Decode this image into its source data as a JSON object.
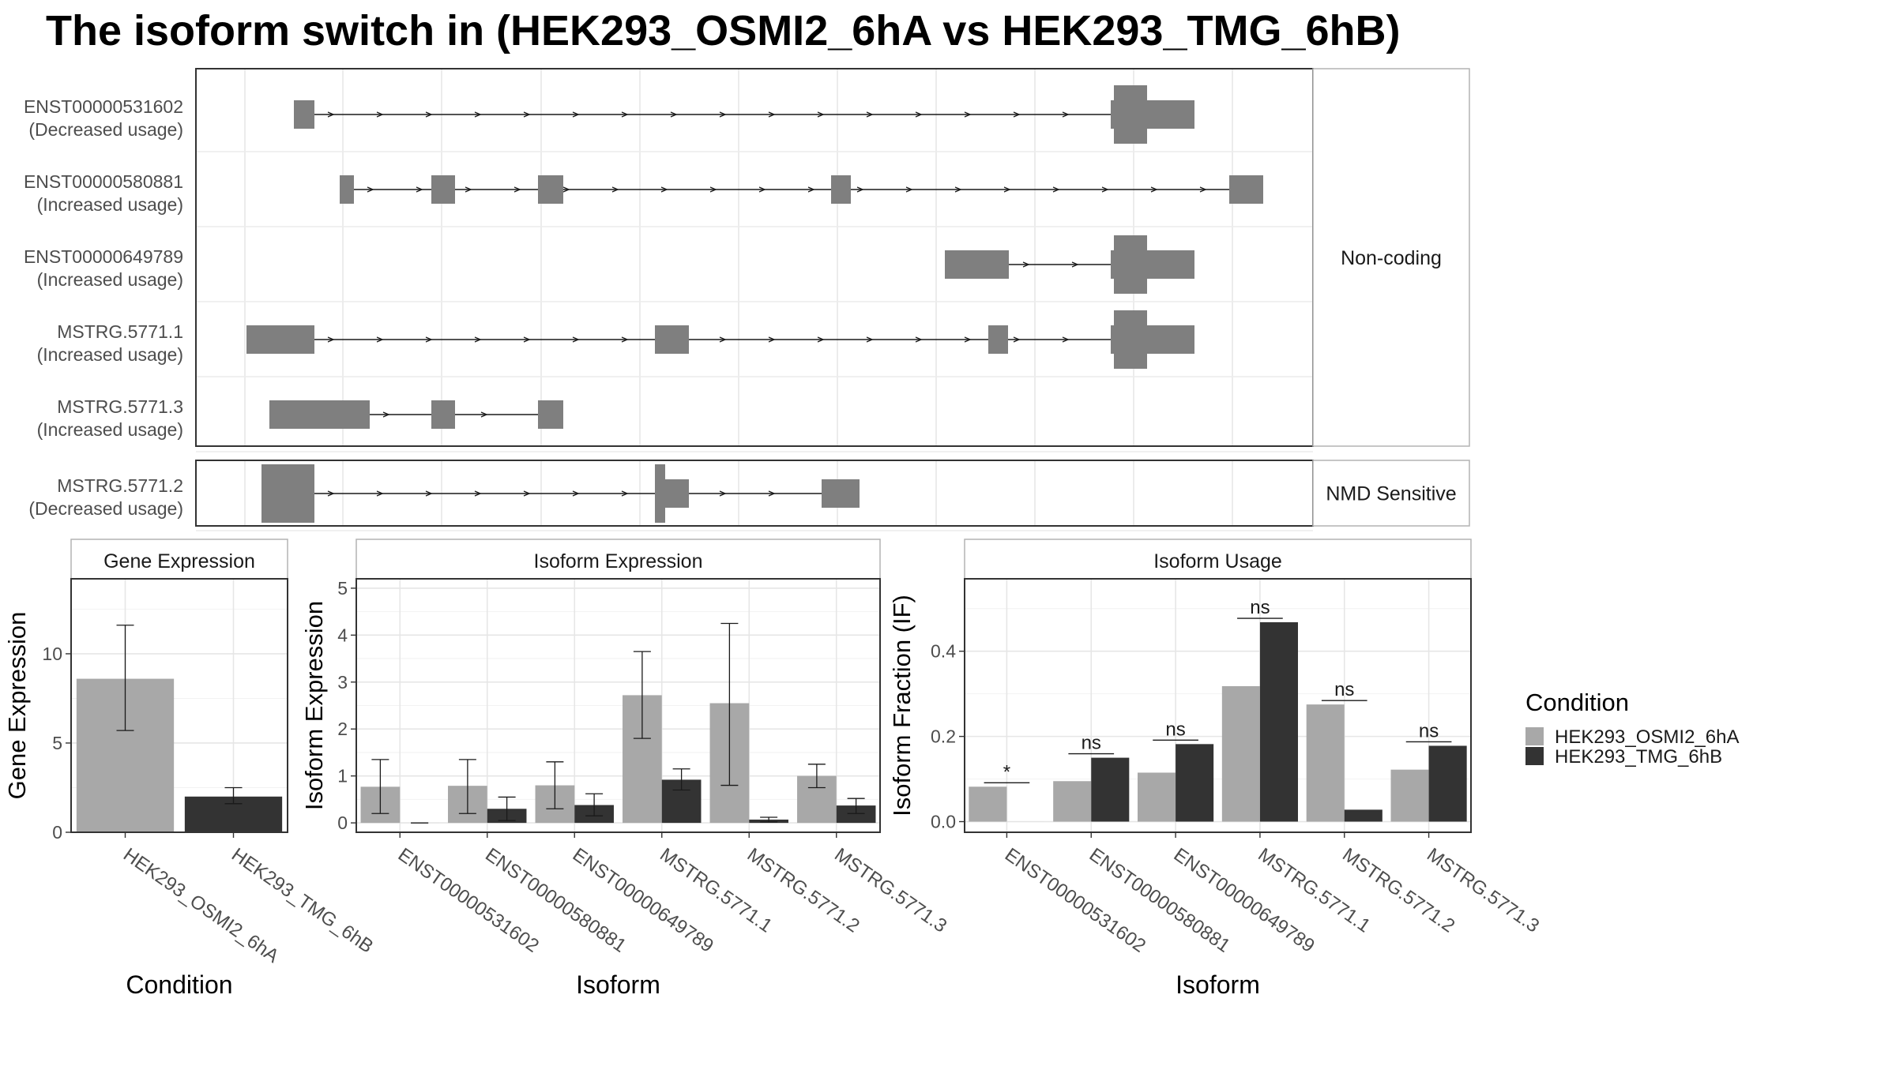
{
  "title": "The isoform switch in  (HEK293_OSMI2_6hA vs HEK293_TMG_6hB)",
  "colors": {
    "condA": "#a8a8a8",
    "condB": "#333333",
    "exon": "#7f7f7f"
  },
  "chart_data": [
    {
      "type": "gene-structure",
      "panels": [
        {
          "label": "Non-coding",
          "rows": [
            {
              "name": "ENST00000531602",
              "usage": "(Decreased usage)"
            },
            {
              "name": "ENST00000580881",
              "usage": "(Increased usage)"
            },
            {
              "name": "ENST00000649789",
              "usage": "(Increased usage)"
            },
            {
              "name": "MSTRG.5771.1",
              "usage": "(Increased usage)"
            },
            {
              "name": "MSTRG.5771.3",
              "usage": "(Increased usage)"
            }
          ]
        },
        {
          "label": "NMD Sensitive",
          "rows": [
            {
              "name": "MSTRG.5771.2",
              "usage": "(Decreased usage)"
            }
          ]
        }
      ]
    },
    {
      "type": "bar",
      "title": "Gene Expression",
      "xlabel": "Condition",
      "ylabel": "Gene Expression",
      "ylim": [
        0,
        14.2
      ],
      "yticks": [
        0,
        5,
        10
      ],
      "categories": [
        "HEK293_OSMI2_6hA",
        "HEK293_TMG_6hB"
      ],
      "values": [
        8.6,
        2.0
      ],
      "err_low": [
        5.7,
        1.6
      ],
      "err_high": [
        11.6,
        2.5
      ]
    },
    {
      "type": "bar",
      "title": "Isoform Expression",
      "xlabel": "Isoform",
      "ylabel": "Isoform Expression",
      "ylim": [
        -0.2,
        5.2
      ],
      "yticks": [
        0,
        1,
        2,
        3,
        4,
        5
      ],
      "categories": [
        "ENST00000531602",
        "ENST00000580881",
        "ENST00000649789",
        "MSTRG.5771.1",
        "MSTRG.5771.2",
        "MSTRG.5771.3"
      ],
      "series": [
        {
          "name": "HEK293_OSMI2_6hA",
          "values": [
            0.77,
            0.79,
            0.8,
            2.72,
            2.55,
            1.0
          ],
          "err_low": [
            0.2,
            0.2,
            0.3,
            1.8,
            0.8,
            0.75
          ],
          "err_high": [
            1.35,
            1.35,
            1.3,
            3.65,
            4.25,
            1.25
          ]
        },
        {
          "name": "HEK293_TMG_6hB",
          "values": [
            0.0,
            0.3,
            0.38,
            0.92,
            0.07,
            0.37
          ],
          "err_low": [
            0.0,
            0.05,
            0.15,
            0.7,
            0.02,
            0.2
          ],
          "err_high": [
            0.0,
            0.55,
            0.62,
            1.15,
            0.12,
            0.52
          ]
        }
      ]
    },
    {
      "type": "bar",
      "title": "Isoform Usage",
      "xlabel": "Isoform",
      "ylabel": "Isoform Fraction (IF)",
      "ylim": [
        -0.025,
        0.57
      ],
      "yticks": [
        0.0,
        0.2,
        0.4
      ],
      "categories": [
        "ENST00000531602",
        "ENST00000580881",
        "ENST00000649789",
        "MSTRG.5771.1",
        "MSTRG.5771.2",
        "MSTRG.5771.3"
      ],
      "series": [
        {
          "name": "HEK293_OSMI2_6hA",
          "values": [
            0.082,
            0.095,
            0.115,
            0.318,
            0.275,
            0.122
          ]
        },
        {
          "name": "HEK293_TMG_6hB",
          "values": [
            0.0,
            0.15,
            0.182,
            0.468,
            0.028,
            0.178
          ]
        }
      ],
      "significance": [
        "*",
        "ns",
        "ns",
        "ns",
        "ns",
        "ns"
      ]
    }
  ],
  "legend": {
    "title": "Condition",
    "items": [
      "HEK293_OSMI2_6hA",
      "HEK293_TMG_6hB"
    ]
  }
}
